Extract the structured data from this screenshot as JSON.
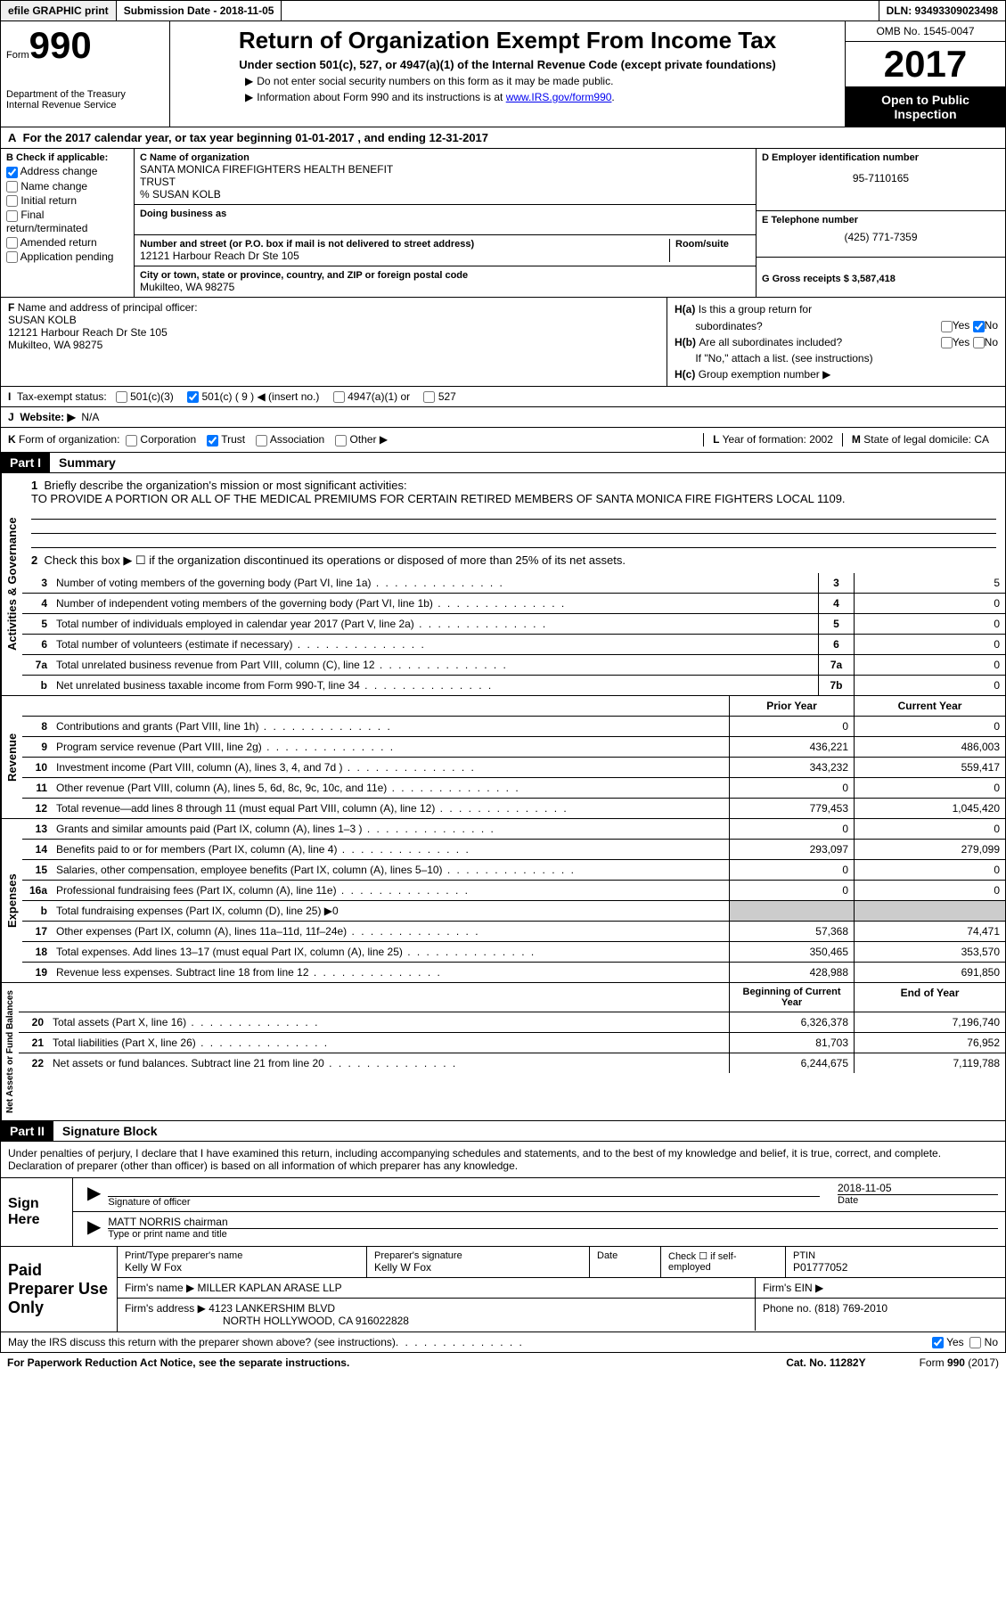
{
  "top": {
    "efile": "efile GRAPHIC print",
    "sub_label": "Submission Date - 2018-11-05",
    "dln": "DLN: 93493309023498"
  },
  "header": {
    "form_word": "Form",
    "form_no": "990",
    "dept1": "Department of the Treasury",
    "dept2": "Internal Revenue Service",
    "title": "Return of Organization Exempt From Income Tax",
    "subtitle": "Under section 501(c), 527, or 4947(a)(1) of the Internal Revenue Code (except private foundations)",
    "instr1": "Do not enter social security numbers on this form as it may be made public.",
    "instr2_a": "Information about Form 990 and its instructions is at ",
    "instr2_link": "www.IRS.gov/form990",
    "omb": "OMB No. 1545-0047",
    "year": "2017",
    "open1": "Open to Public",
    "open2": "Inspection"
  },
  "rowA": "For the 2017 calendar year, or tax year beginning 01-01-2017   , and ending 12-31-2017",
  "B": {
    "label": "Check if applicable:",
    "opts": [
      "Address change",
      "Name change",
      "Initial return",
      "Final return/terminated",
      "Amended return",
      "Application pending"
    ]
  },
  "C": {
    "name_lbl": "Name of organization",
    "name1": "SANTA MONICA FIREFIGHTERS HEALTH BENEFIT",
    "name2": "TRUST",
    "name3": "% SUSAN KOLB",
    "dba_lbl": "Doing business as",
    "addr_lbl": "Number and street (or P.O. box if mail is not delivered to street address)",
    "room_lbl": "Room/suite",
    "addr": "12121 Harbour Reach Dr Ste 105",
    "city_lbl": "City or town, state or province, country, and ZIP or foreign postal code",
    "city": "Mukilteo, WA  98275"
  },
  "D": {
    "lbl": "D Employer identification number",
    "val": "95-7110165"
  },
  "E": {
    "lbl": "E Telephone number",
    "val": "(425) 771-7359"
  },
  "G": {
    "lbl": "G Gross receipts $ 3,587,418"
  },
  "F": {
    "lbl": "Name and address of principal officer:",
    "name": "SUSAN KOLB",
    "addr1": "12121 Harbour Reach Dr Ste 105",
    "addr2": "Mukilteo, WA  98275"
  },
  "H": {
    "a": "Is this a group return for",
    "a2": "subordinates?",
    "b": "Are all subordinates included?",
    "ifno": "If \"No,\" attach a list. (see instructions)",
    "c": "Group exemption number ▶",
    "yes": "Yes",
    "no": "No"
  },
  "I": {
    "lbl": "Tax-exempt status:",
    "o1": "501(c)(3)",
    "o2": "501(c) ( 9 ) ◀ (insert no.)",
    "o3": "4947(a)(1) or",
    "o4": "527"
  },
  "J": {
    "lbl": "Website: ▶",
    "val": "N/A"
  },
  "K": {
    "lbl": "Form of organization:",
    "o1": "Corporation",
    "o2": "Trust",
    "o3": "Association",
    "o4": "Other ▶",
    "L": "Year of formation: 2002",
    "M": "State of legal domicile: CA"
  },
  "part1": {
    "hdr": "Part I",
    "title": "Summary",
    "l1_lbl": "Briefly describe the organization's mission or most significant activities:",
    "l1_txt": "TO PROVIDE A PORTION OR ALL OF THE MEDICAL PREMIUMS FOR CERTAIN RETIRED MEMBERS OF SANTA MONICA FIRE FIGHTERS LOCAL 1109.",
    "l2": "Check this box ▶ ☐  if the organization discontinued its operations or disposed of more than 25% of its net assets.",
    "lines_gov": [
      {
        "n": "3",
        "t": "Number of voting members of the governing body (Part VI, line 1a)",
        "b": "3",
        "v": "5"
      },
      {
        "n": "4",
        "t": "Number of independent voting members of the governing body (Part VI, line 1b)",
        "b": "4",
        "v": "0"
      },
      {
        "n": "5",
        "t": "Total number of individuals employed in calendar year 2017 (Part V, line 2a)",
        "b": "5",
        "v": "0"
      },
      {
        "n": "6",
        "t": "Total number of volunteers (estimate if necessary)",
        "b": "6",
        "v": "0"
      },
      {
        "n": "7a",
        "t": "Total unrelated business revenue from Part VIII, column (C), line 12",
        "b": "7a",
        "v": "0"
      },
      {
        "n": "b",
        "t": "Net unrelated business taxable income from Form 990-T, line 34",
        "b": "7b",
        "v": "0"
      }
    ],
    "hdr_prior": "Prior Year",
    "hdr_curr": "Current Year",
    "rev": [
      {
        "n": "8",
        "t": "Contributions and grants (Part VIII, line 1h)",
        "p": "0",
        "c": "0"
      },
      {
        "n": "9",
        "t": "Program service revenue (Part VIII, line 2g)",
        "p": "436,221",
        "c": "486,003"
      },
      {
        "n": "10",
        "t": "Investment income (Part VIII, column (A), lines 3, 4, and 7d )",
        "p": "343,232",
        "c": "559,417"
      },
      {
        "n": "11",
        "t": "Other revenue (Part VIII, column (A), lines 5, 6d, 8c, 9c, 10c, and 11e)",
        "p": "0",
        "c": "0"
      },
      {
        "n": "12",
        "t": "Total revenue—add lines 8 through 11 (must equal Part VIII, column (A), line 12)",
        "p": "779,453",
        "c": "1,045,420"
      }
    ],
    "exp": [
      {
        "n": "13",
        "t": "Grants and similar amounts paid (Part IX, column (A), lines 1–3 )",
        "p": "0",
        "c": "0"
      },
      {
        "n": "14",
        "t": "Benefits paid to or for members (Part IX, column (A), line 4)",
        "p": "293,097",
        "c": "279,099"
      },
      {
        "n": "15",
        "t": "Salaries, other compensation, employee benefits (Part IX, column (A), lines 5–10)",
        "p": "0",
        "c": "0"
      },
      {
        "n": "16a",
        "t": "Professional fundraising fees (Part IX, column (A), line 11e)",
        "p": "0",
        "c": "0"
      },
      {
        "n": "b",
        "t": "Total fundraising expenses (Part IX, column (D), line 25) ▶0",
        "p": "",
        "c": "",
        "shade": true
      },
      {
        "n": "17",
        "t": "Other expenses (Part IX, column (A), lines 11a–11d, 11f–24e)",
        "p": "57,368",
        "c": "74,471"
      },
      {
        "n": "18",
        "t": "Total expenses. Add lines 13–17 (must equal Part IX, column (A), line 25)",
        "p": "350,465",
        "c": "353,570"
      },
      {
        "n": "19",
        "t": "Revenue less expenses. Subtract line 18 from line 12",
        "p": "428,988",
        "c": "691,850"
      }
    ],
    "hdr_beg": "Beginning of Current Year",
    "hdr_end": "End of Year",
    "net": [
      {
        "n": "20",
        "t": "Total assets (Part X, line 16)",
        "p": "6,326,378",
        "c": "7,196,740"
      },
      {
        "n": "21",
        "t": "Total liabilities (Part X, line 26)",
        "p": "81,703",
        "c": "76,952"
      },
      {
        "n": "22",
        "t": "Net assets or fund balances. Subtract line 21 from line 20",
        "p": "6,244,675",
        "c": "7,119,788"
      }
    ],
    "v_gov": "Activities & Governance",
    "v_rev": "Revenue",
    "v_exp": "Expenses",
    "v_net": "Net Assets or Fund Balances"
  },
  "part2": {
    "hdr": "Part II",
    "title": "Signature Block",
    "decl": "Under penalties of perjury, I declare that I have examined this return, including accompanying schedules and statements, and to the best of my knowledge and belief, it is true, correct, and complete. Declaration of preparer (other than officer) is based on all information of which preparer has any knowledge.",
    "sign_lbl": "Sign Here",
    "sig_of": "Signature of officer",
    "date_lbl": "Date",
    "date_val": "2018-11-05",
    "name_title": "MATT NORRIS chairman",
    "type_lbl": "Type or print name and title",
    "paid_lbl": "Paid Preparer Use Only",
    "pr_name_lbl": "Print/Type preparer's name",
    "pr_name": "Kelly W Fox",
    "pr_sig_lbl": "Preparer's signature",
    "pr_sig": "Kelly W Fox",
    "pr_date_lbl": "Date",
    "check_se": "Check ☐ if self-employed",
    "ptin_lbl": "PTIN",
    "ptin": "P01777052",
    "firm_name_lbl": "Firm's name    ▶",
    "firm_name": "MILLER KAPLAN ARASE LLP",
    "firm_ein_lbl": "Firm's EIN ▶",
    "firm_addr_lbl": "Firm's address ▶",
    "firm_addr1": "4123 LANKERSHIM BLVD",
    "firm_addr2": "NORTH HOLLYWOOD, CA  916022828",
    "phone_lbl": "Phone no. (818) 769-2010",
    "discuss": "May the IRS discuss this return with the preparer shown above? (see instructions)",
    "yes": "Yes",
    "no": "No"
  },
  "bottom": {
    "pra": "For Paperwork Reduction Act Notice, see the separate instructions.",
    "cat": "Cat. No. 11282Y",
    "form": "Form 990 (2017)"
  }
}
